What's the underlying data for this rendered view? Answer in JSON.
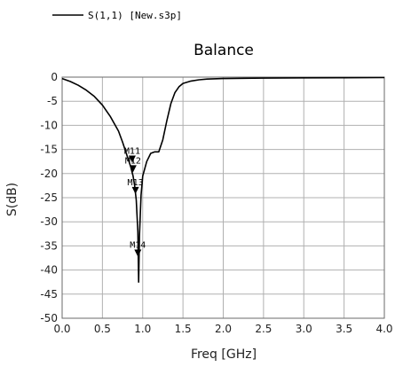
{
  "chart_data": {
    "type": "line",
    "title": "Balance",
    "xlabel": "Freq [GHz]",
    "ylabel": "S(dB)",
    "xlim": [
      0.0,
      4.0
    ],
    "ylim": [
      -50,
      0
    ],
    "x_ticks": [
      "0.0",
      "0.5",
      "1.0",
      "1.5",
      "2.0",
      "2.5",
      "3.0",
      "3.5",
      "4.0"
    ],
    "x_tick_values": [
      0.0,
      0.5,
      1.0,
      1.5,
      2.0,
      2.5,
      3.0,
      3.5,
      4.0
    ],
    "y_ticks": [
      "0",
      "-5",
      "-10",
      "-15",
      "-20",
      "-25",
      "-30",
      "-35",
      "-40",
      "-45",
      "-50"
    ],
    "y_tick_values": [
      0,
      -5,
      -10,
      -15,
      -20,
      -25,
      -30,
      -35,
      -40,
      -45,
      -50
    ],
    "grid": true,
    "legend_placement": "top-left",
    "series": [
      {
        "name": "S(1,1) [New.s3p]",
        "color": "#000000",
        "x": [
          0.0,
          0.1,
          0.2,
          0.3,
          0.4,
          0.5,
          0.6,
          0.7,
          0.75,
          0.8,
          0.85,
          0.88,
          0.9,
          0.92,
          0.94,
          0.95,
          0.96,
          0.98,
          1.0,
          1.05,
          1.1,
          1.15,
          1.2,
          1.25,
          1.3,
          1.35,
          1.4,
          1.45,
          1.5,
          1.6,
          1.7,
          1.8,
          2.0,
          2.5,
          3.0,
          3.5,
          4.0
        ],
        "y": [
          -0.3,
          -0.9,
          -1.7,
          -2.7,
          -4.0,
          -5.8,
          -8.2,
          -11.2,
          -13.5,
          -16.0,
          -18.5,
          -20.5,
          -22.5,
          -25.5,
          -32.0,
          -42.5,
          -33.0,
          -24.5,
          -20.5,
          -17.5,
          -15.8,
          -15.5,
          -15.5,
          -13.0,
          -9.0,
          -5.5,
          -3.2,
          -2.0,
          -1.3,
          -0.8,
          -0.55,
          -0.4,
          -0.3,
          -0.2,
          -0.15,
          -0.12,
          -0.1
        ]
      }
    ],
    "markers": [
      {
        "label": "M11",
        "x": 0.87,
        "y": -17.0
      },
      {
        "label": "M12",
        "x": 0.88,
        "y": -19.0
      },
      {
        "label": "M13",
        "x": 0.91,
        "y": -23.5
      },
      {
        "label": "M14",
        "x": 0.94,
        "y": -36.5
      }
    ]
  }
}
